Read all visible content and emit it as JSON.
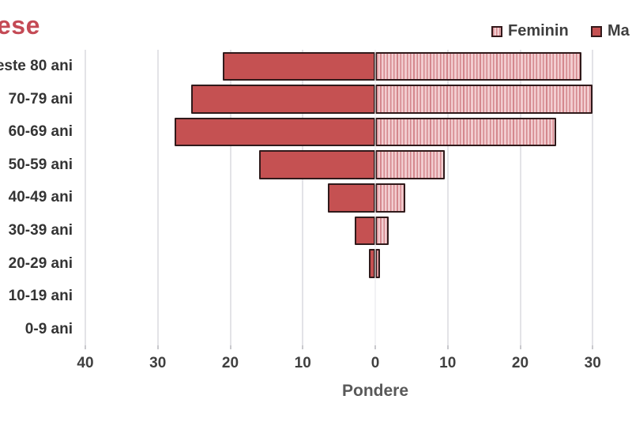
{
  "title": {
    "text": "ese",
    "color": "#c44a55"
  },
  "legend": {
    "items": [
      {
        "label": "Feminin",
        "swatch": "feminin"
      },
      {
        "label": "Ma",
        "swatch": "masculin"
      }
    ],
    "position": "top-right"
  },
  "chart_data": {
    "type": "bar",
    "subtype": "population-pyramid",
    "orientation": "horizontal",
    "categories": [
      "este 80 ani",
      "70-79 ani",
      "60-69 ani",
      "50-59 ani",
      "40-49 ani",
      "30-39 ani",
      "20-29 ani",
      "10-19 ani",
      "0-9 ani"
    ],
    "series": [
      {
        "name": "Masculin",
        "side": "left",
        "color": "#c55152",
        "pattern": "solid",
        "values": [
          21,
          25.4,
          27.7,
          16,
          6.5,
          2.8,
          0.9,
          0,
          0
        ]
      },
      {
        "name": "Feminin",
        "side": "right",
        "color": "#f2cdd0",
        "pattern": "vertical-stripes",
        "values": [
          28.5,
          30,
          25,
          9.6,
          4.1,
          1.9,
          0.7,
          0,
          0
        ]
      }
    ],
    "xlabel": "Pondere",
    "ylabel": "",
    "x_ticks": [
      {
        "value": -40,
        "label": "40"
      },
      {
        "value": -30,
        "label": "30"
      },
      {
        "value": -20,
        "label": "20"
      },
      {
        "value": -10,
        "label": "10"
      },
      {
        "value": 0,
        "label": "0"
      },
      {
        "value": 10,
        "label": "10"
      },
      {
        "value": 20,
        "label": "20"
      },
      {
        "value": 30,
        "label": "30"
      }
    ],
    "xlim": [
      -40,
      35
    ],
    "grid": true,
    "legend_position": "top-right"
  },
  "colors": {
    "masculin_fill": "#c55152",
    "feminin_stripe_dark": "#d4878d",
    "feminin_stripe_light": "#f2cdd0",
    "bar_border": "#301a1b",
    "gridline": "#e3e3e7",
    "axis_text": "#404040",
    "title_red": "#c44a55"
  }
}
